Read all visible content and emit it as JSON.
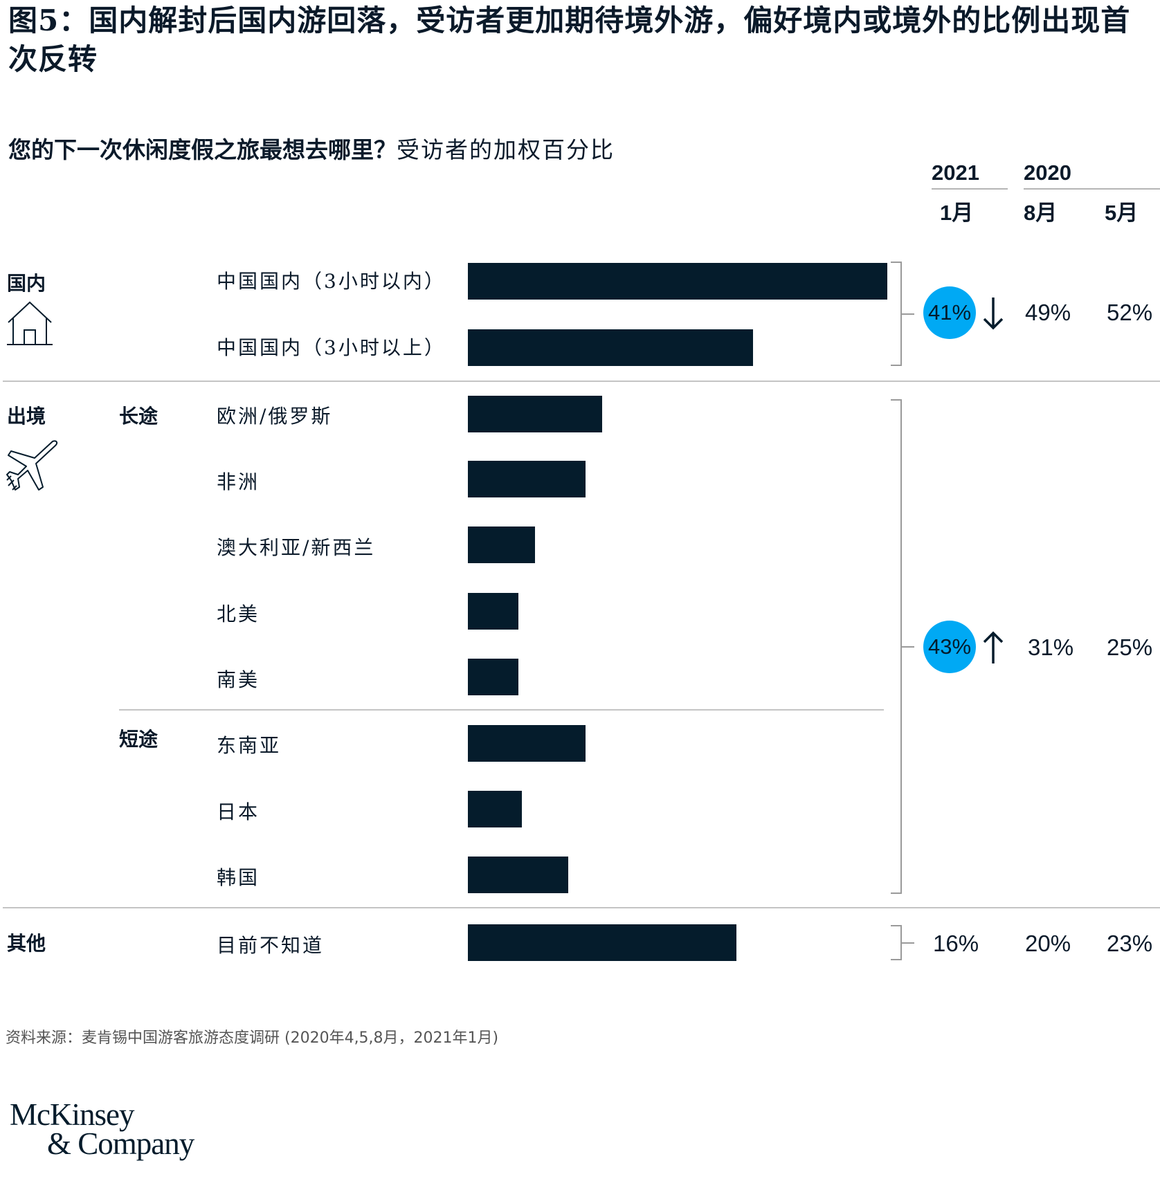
{
  "title": "图5：国内解封后国内游回落，受访者更加期待境外游，偏好境内或境外的比例出现首次反转",
  "subtitle_question": "您的下一次休闲度假之旅最想去哪里？",
  "subtitle_unit": "受访者的加权百分比",
  "headers": {
    "year_2021": "2021",
    "year_2020": "2020",
    "month_jan": "1月",
    "month_aug": "8月",
    "month_may": "5月"
  },
  "sections": {
    "domestic": "国内",
    "outbound": "出境",
    "long_haul": "长途",
    "short_haul": "短途",
    "other": "其他"
  },
  "icons": {
    "domestic": "house-icon",
    "outbound": "airplane-icon"
  },
  "colors": {
    "bar": "#051c2c",
    "highlight": "#00a9f4"
  },
  "chart_data": {
    "type": "bar",
    "orientation": "horizontal",
    "categories": [
      "中国国内（3小时以内）",
      "中国国内（3小时以上）",
      "欧洲/俄罗斯",
      "非洲",
      "澳大利亚/新西兰",
      "北美",
      "南美",
      "东南亚",
      "日本",
      "韩国",
      "目前不知道"
    ],
    "values": [
      25,
      17,
      8,
      7,
      4,
      3,
      3,
      7,
      3.2,
      6,
      16
    ],
    "xlim": [
      0,
      25
    ],
    "value_labels_shown": false
  },
  "summary": [
    {
      "group": "国内",
      "jan_2021": "41%",
      "trend": "down",
      "aug_2020": "49%",
      "may_2020": "52%"
    },
    {
      "group": "出境",
      "jan_2021": "43%",
      "trend": "up",
      "aug_2020": "31%",
      "may_2020": "25%"
    },
    {
      "group": "其他",
      "jan_2021": "16%",
      "trend": "",
      "aug_2020": "20%",
      "may_2020": "23%"
    }
  ],
  "source": "资料来源：麦肯锡中国游客旅游态度调研 (2020年4,5,8月，2021年1月)",
  "logo": {
    "line1": "McKinsey",
    "line2": "& Company"
  }
}
